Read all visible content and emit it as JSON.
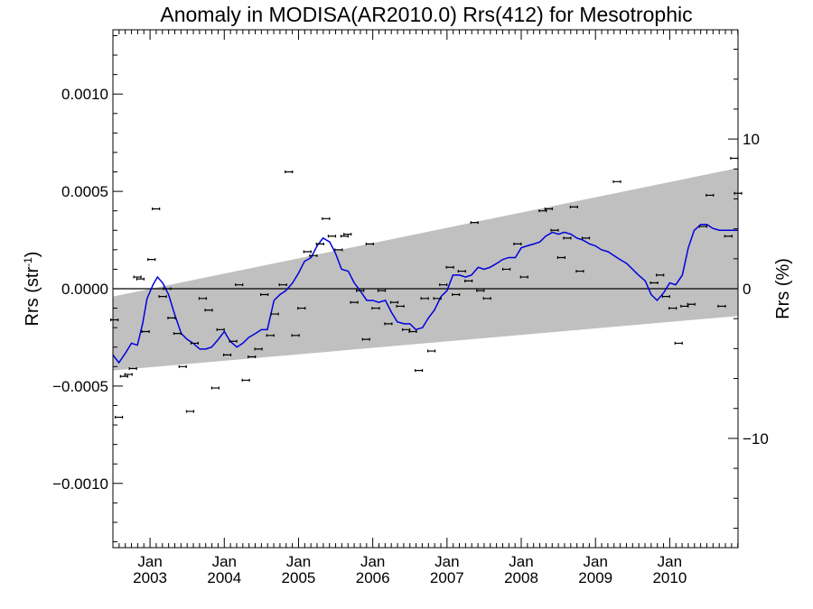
{
  "chart_data": {
    "type": "scatter",
    "title": "Anomaly in MODISA(AR2010.0) Rrs(412) for Mesotrophic",
    "ylabel_left": {
      "base": "Rrs (str",
      "sup": "-1",
      "close": ")"
    },
    "ylabel_right": "Rrs (%)",
    "xlim": [
      2002.5,
      2010.92
    ],
    "ylim_left": [
      -0.00133,
      0.00133
    ],
    "ylim_right": [
      -17.3,
      17.3
    ],
    "x_ticks": [
      {
        "x": 2003,
        "month": "Jan",
        "year": "2003"
      },
      {
        "x": 2004,
        "month": "Jan",
        "year": "2004"
      },
      {
        "x": 2005,
        "month": "Jan",
        "year": "2005"
      },
      {
        "x": 2006,
        "month": "Jan",
        "year": "2006"
      },
      {
        "x": 2007,
        "month": "Jan",
        "year": "2007"
      },
      {
        "x": 2008,
        "month": "Jan",
        "year": "2008"
      },
      {
        "x": 2009,
        "month": "Jan",
        "year": "2009"
      },
      {
        "x": 2010,
        "month": "Jan",
        "year": "2010"
      }
    ],
    "y_ticks_left": [
      {
        "v": 0.001,
        "label": "0.0010"
      },
      {
        "v": 0.0005,
        "label": "0.0005"
      },
      {
        "v": 0.0,
        "label": "0.0000"
      },
      {
        "v": -0.0005,
        "label": "−0.0005"
      },
      {
        "v": -0.001,
        "label": "−0.0010"
      }
    ],
    "y_ticks_right": [
      {
        "v": 10,
        "label": "10"
      },
      {
        "v": 0,
        "label": "0"
      },
      {
        "v": -10,
        "label": "−10"
      }
    ],
    "band": {
      "description": "shaded envelope",
      "color": "#c0c0c0",
      "upper": [
        [
          2002.5,
          -4e-05
        ],
        [
          2010.92,
          0.00062
        ]
      ],
      "lower": [
        [
          2002.5,
          -0.00042
        ],
        [
          2010.92,
          -0.00014
        ]
      ]
    },
    "zero_line": 0,
    "series": [
      {
        "style": "points",
        "color": "#000000",
        "points": [
          [
            2002.52,
            -0.00016
          ],
          [
            2002.58,
            -0.00066
          ],
          [
            2002.65,
            -0.00045
          ],
          [
            2002.71,
            -0.00044
          ],
          [
            2002.77,
            -0.00041
          ],
          [
            2002.83,
            6e-05
          ],
          [
            2002.87,
            5e-05
          ],
          [
            2002.94,
            -0.00022
          ],
          [
            2003.02,
            0.00015
          ],
          [
            2003.08,
            0.00041
          ],
          [
            2003.17,
            -4e-05
          ],
          [
            2003.23,
            0.0
          ],
          [
            2003.29,
            -0.00015
          ],
          [
            2003.37,
            -0.00023
          ],
          [
            2003.44,
            -0.0004
          ],
          [
            2003.54,
            -0.00063
          ],
          [
            2003.6,
            -0.00028
          ],
          [
            2003.71,
            -5e-05
          ],
          [
            2003.79,
            -0.00011
          ],
          [
            2003.88,
            -0.00051
          ],
          [
            2003.95,
            -0.00021
          ],
          [
            2004.04,
            -0.00034
          ],
          [
            2004.12,
            -0.00027
          ],
          [
            2004.2,
            2e-05
          ],
          [
            2004.29,
            -0.00047
          ],
          [
            2004.37,
            -0.00035
          ],
          [
            2004.46,
            -0.00031
          ],
          [
            2004.54,
            -3e-05
          ],
          [
            2004.62,
            -0.00024
          ],
          [
            2004.68,
            -0.00013
          ],
          [
            2004.79,
            2e-05
          ],
          [
            2004.87,
            0.0006
          ],
          [
            2004.96,
            -0.00024
          ],
          [
            2005.04,
            -0.0001
          ],
          [
            2005.12,
            0.00019
          ],
          [
            2005.2,
            0.00017
          ],
          [
            2005.29,
            0.00023
          ],
          [
            2005.37,
            0.00036
          ],
          [
            2005.45,
            0.00027
          ],
          [
            2005.54,
            0.0002
          ],
          [
            2005.62,
            0.00027
          ],
          [
            2005.66,
            0.00028
          ],
          [
            2005.75,
            -7e-05
          ],
          [
            2005.83,
            -1e-05
          ],
          [
            2005.91,
            -0.00026
          ],
          [
            2005.96,
            0.00023
          ],
          [
            2006.04,
            -0.0001
          ],
          [
            2006.12,
            -1e-05
          ],
          [
            2006.21,
            -0.00018
          ],
          [
            2006.29,
            -7e-05
          ],
          [
            2006.37,
            -9e-05
          ],
          [
            2006.45,
            -0.00021
          ],
          [
            2006.54,
            -0.00022
          ],
          [
            2006.62,
            -0.00042
          ],
          [
            2006.7,
            -5e-05
          ],
          [
            2006.79,
            -0.00032
          ],
          [
            2006.87,
            -5e-05
          ],
          [
            2006.95,
            2e-05
          ],
          [
            2007.04,
            0.00011
          ],
          [
            2007.12,
            -3e-05
          ],
          [
            2007.2,
            9e-05
          ],
          [
            2007.29,
            4e-05
          ],
          [
            2007.37,
            0.00034
          ],
          [
            2007.45,
            -1e-05
          ],
          [
            2007.54,
            -5e-05
          ],
          [
            2007.8,
            0.0001
          ],
          [
            2007.95,
            0.00023
          ],
          [
            2008.04,
            6e-05
          ],
          [
            2008.29,
            0.0004
          ],
          [
            2008.37,
            0.00041
          ],
          [
            2008.45,
            0.0003
          ],
          [
            2008.54,
            0.00016
          ],
          [
            2008.62,
            0.00026
          ],
          [
            2008.71,
            0.00042
          ],
          [
            2008.79,
            9e-05
          ],
          [
            2008.87,
            0.00026
          ],
          [
            2009.29,
            0.00055
          ],
          [
            2009.79,
            3e-05
          ],
          [
            2009.87,
            7e-05
          ],
          [
            2009.95,
            -4e-05
          ],
          [
            2010.04,
            -0.0001
          ],
          [
            2010.12,
            -0.00028
          ],
          [
            2010.2,
            -9e-05
          ],
          [
            2010.29,
            -8e-05
          ],
          [
            2010.45,
            0.00032
          ],
          [
            2010.54,
            0.00048
          ],
          [
            2010.7,
            -9e-05
          ],
          [
            2010.79,
            0.00027
          ],
          [
            2010.87,
            0.00067
          ],
          [
            2010.92,
            0.00049
          ]
        ]
      },
      {
        "style": "line",
        "color": "#0000dd",
        "points": [
          [
            2002.5,
            -0.00034
          ],
          [
            2002.58,
            -0.00038
          ],
          [
            2002.67,
            -0.00033
          ],
          [
            2002.75,
            -0.00028
          ],
          [
            2002.83,
            -0.00029
          ],
          [
            2002.9,
            -0.00018
          ],
          [
            2002.96,
            -5e-05
          ],
          [
            2003.04,
            2e-05
          ],
          [
            2003.1,
            6e-05
          ],
          [
            2003.17,
            3e-05
          ],
          [
            2003.25,
            -3e-05
          ],
          [
            2003.33,
            -0.00013
          ],
          [
            2003.42,
            -0.00023
          ],
          [
            2003.5,
            -0.00026
          ],
          [
            2003.58,
            -0.00028
          ],
          [
            2003.67,
            -0.00031
          ],
          [
            2003.75,
            -0.00031
          ],
          [
            2003.83,
            -0.0003
          ],
          [
            2003.92,
            -0.00026
          ],
          [
            2004.0,
            -0.00022
          ],
          [
            2004.08,
            -0.00027
          ],
          [
            2004.17,
            -0.0003
          ],
          [
            2004.25,
            -0.00028
          ],
          [
            2004.33,
            -0.00025
          ],
          [
            2004.42,
            -0.00023
          ],
          [
            2004.5,
            -0.00021
          ],
          [
            2004.58,
            -0.00021
          ],
          [
            2004.67,
            -6e-05
          ],
          [
            2004.75,
            -3e-05
          ],
          [
            2004.83,
            -1e-05
          ],
          [
            2004.92,
            3e-05
          ],
          [
            2005.0,
            8e-05
          ],
          [
            2005.08,
            0.00014
          ],
          [
            2005.17,
            0.00016
          ],
          [
            2005.25,
            0.00022
          ],
          [
            2005.33,
            0.00026
          ],
          [
            2005.42,
            0.00024
          ],
          [
            2005.5,
            0.00018
          ],
          [
            2005.58,
            0.0001
          ],
          [
            2005.67,
            9e-05
          ],
          [
            2005.75,
            3e-05
          ],
          [
            2005.83,
            -1e-05
          ],
          [
            2005.92,
            -6e-05
          ],
          [
            2006.0,
            -6e-05
          ],
          [
            2006.08,
            -7e-05
          ],
          [
            2006.17,
            -6e-05
          ],
          [
            2006.25,
            -0.00012
          ],
          [
            2006.33,
            -0.00017
          ],
          [
            2006.42,
            -0.00018
          ],
          [
            2006.5,
            -0.00018
          ],
          [
            2006.58,
            -0.00021
          ],
          [
            2006.67,
            -0.0002
          ],
          [
            2006.75,
            -0.00015
          ],
          [
            2006.83,
            -0.00011
          ],
          [
            2006.92,
            -4e-05
          ],
          [
            2007.0,
            -1e-05
          ],
          [
            2007.08,
            7e-05
          ],
          [
            2007.17,
            7e-05
          ],
          [
            2007.25,
            6e-05
          ],
          [
            2007.33,
            7e-05
          ],
          [
            2007.42,
            0.00011
          ],
          [
            2007.5,
            0.0001
          ],
          [
            2007.58,
            0.00011
          ],
          [
            2007.67,
            0.00013
          ],
          [
            2007.75,
            0.00015
          ],
          [
            2007.83,
            0.00016
          ],
          [
            2007.92,
            0.00016
          ],
          [
            2008.0,
            0.00021
          ],
          [
            2008.08,
            0.00022
          ],
          [
            2008.17,
            0.00023
          ],
          [
            2008.25,
            0.00024
          ],
          [
            2008.33,
            0.00027
          ],
          [
            2008.42,
            0.00029
          ],
          [
            2008.5,
            0.00028
          ],
          [
            2008.58,
            0.00029
          ],
          [
            2008.67,
            0.00028
          ],
          [
            2008.75,
            0.00026
          ],
          [
            2008.83,
            0.00025
          ],
          [
            2008.92,
            0.00023
          ],
          [
            2009.0,
            0.00022
          ],
          [
            2009.08,
            0.0002
          ],
          [
            2009.17,
            0.00019
          ],
          [
            2009.25,
            0.00017
          ],
          [
            2009.33,
            0.00015
          ],
          [
            2009.42,
            0.00013
          ],
          [
            2009.5,
            0.0001
          ],
          [
            2009.58,
            7e-05
          ],
          [
            2009.67,
            4e-05
          ],
          [
            2009.75,
            -3e-05
          ],
          [
            2009.83,
            -6e-05
          ],
          [
            2009.92,
            -2e-05
          ],
          [
            2010.0,
            3e-05
          ],
          [
            2010.08,
            2e-05
          ],
          [
            2010.17,
            7e-05
          ],
          [
            2010.25,
            0.00021
          ],
          [
            2010.33,
            0.0003
          ],
          [
            2010.42,
            0.00033
          ],
          [
            2010.5,
            0.00033
          ],
          [
            2010.58,
            0.00031
          ],
          [
            2010.67,
            0.0003
          ],
          [
            2010.75,
            0.0003
          ],
          [
            2010.83,
            0.0003
          ],
          [
            2010.92,
            0.0003
          ]
        ]
      }
    ],
    "grid": false
  }
}
